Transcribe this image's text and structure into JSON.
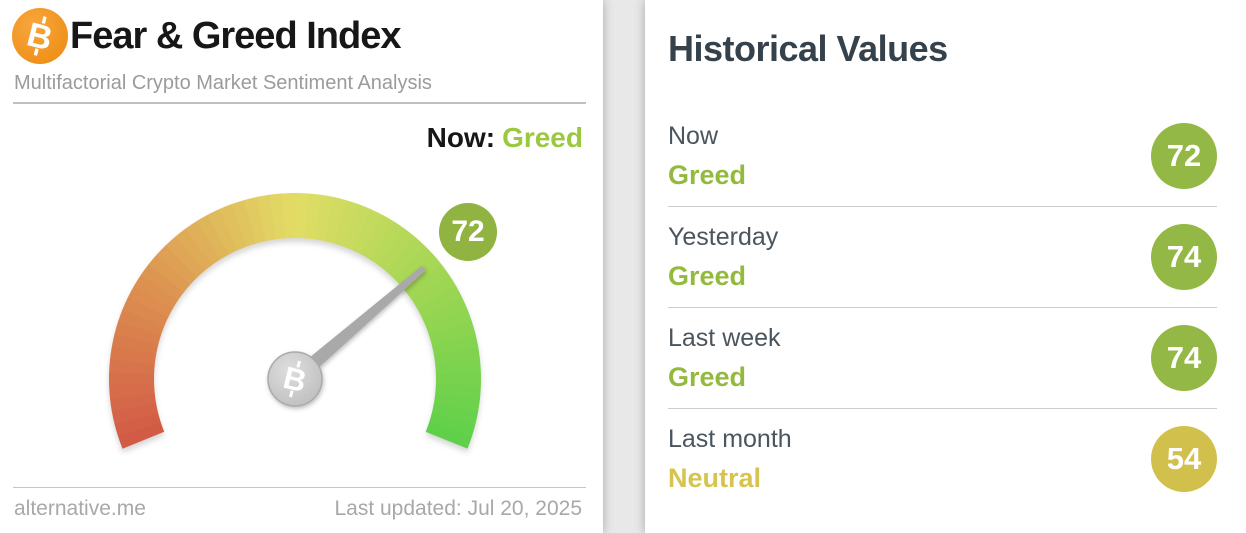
{
  "left_panel": {
    "title": "Fear & Greed Index",
    "subtitle": "Multifactorial Crypto Market Sentiment Analysis",
    "now_label": "Now:",
    "now_status": "Greed",
    "now_status_color": "#9bc83e",
    "footer": {
      "source": "alternative.me",
      "last_updated": "Last updated: Jul 20, 2025"
    }
  },
  "right_panel": {
    "title": "Historical Values",
    "rows": [
      {
        "label": "Now",
        "status": "Greed",
        "value": "72",
        "status_color": "#93ba3d",
        "badge_color": "#94b845"
      },
      {
        "label": "Yesterday",
        "status": "Greed",
        "value": "74",
        "status_color": "#93ba3d",
        "badge_color": "#94b845"
      },
      {
        "label": "Last week",
        "status": "Greed",
        "value": "74",
        "status_color": "#93ba3d",
        "badge_color": "#94b845"
      },
      {
        "label": "Last month",
        "status": "Neutral",
        "value": "54",
        "status_color": "#d6c44e",
        "badge_color": "#d2c04c"
      }
    ]
  },
  "chart_data": {
    "type": "gauge",
    "title": "Fear & Greed Index",
    "value": 72,
    "min": 0,
    "max": 100,
    "classification": "Greed",
    "badge_color": "#90b342",
    "needle_color": "#a9a9a9",
    "arc_sweep_deg": 224,
    "gradient_stops": [
      {
        "pos": 0.0,
        "color": "#d25946"
      },
      {
        "pos": 0.25,
        "color": "#dd9350"
      },
      {
        "pos": 0.5,
        "color": "#e2dd66"
      },
      {
        "pos": 0.75,
        "color": "#9fd653"
      },
      {
        "pos": 1.0,
        "color": "#5ed04a"
      }
    ],
    "historical": [
      {
        "label": "Now",
        "classification": "Greed",
        "value": 72
      },
      {
        "label": "Yesterday",
        "classification": "Greed",
        "value": 74
      },
      {
        "label": "Last week",
        "classification": "Greed",
        "value": 74
      },
      {
        "label": "Last month",
        "classification": "Neutral",
        "value": 54
      }
    ]
  }
}
